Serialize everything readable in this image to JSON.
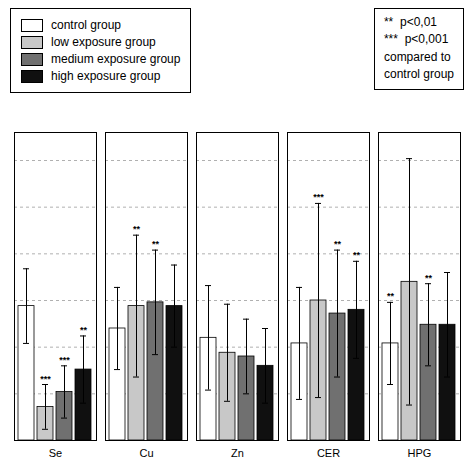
{
  "chart_data": {
    "type": "bar",
    "categories": [
      "Se",
      "Cu",
      "Zn",
      "CER",
      "HPG"
    ],
    "series": [
      {
        "name": "control group",
        "color": "white",
        "values": [
          0.72,
          0.6,
          0.55,
          0.52,
          0.52
        ],
        "errors": [
          0.2,
          0.22,
          0.28,
          0.3,
          0.22
        ],
        "significance": [
          null,
          null,
          null,
          null,
          "**"
        ]
      },
      {
        "name": "low exposure group",
        "color": "#c8c8c8",
        "values": [
          0.18,
          0.72,
          0.47,
          0.75,
          0.85
        ],
        "errors": [
          0.12,
          0.38,
          0.26,
          0.52,
          0.66
        ],
        "significance": [
          "***",
          "**",
          null,
          "***",
          null
        ]
      },
      {
        "name": "medium exposure group",
        "color": "#707070",
        "values": [
          0.26,
          0.74,
          0.45,
          0.68,
          0.62
        ],
        "errors": [
          0.14,
          0.28,
          0.2,
          0.34,
          0.22
        ],
        "significance": [
          "***",
          "**",
          null,
          "**",
          "**"
        ]
      },
      {
        "name": "high exposure group",
        "color": "#101010",
        "values": [
          0.38,
          0.72,
          0.4,
          0.7,
          0.62
        ],
        "errors": [
          0.18,
          0.22,
          0.2,
          0.26,
          0.28
        ],
        "significance": [
          "**",
          null,
          null,
          "**",
          null
        ]
      }
    ],
    "annotations": [
      "**  p<0,01",
      "***  p<0,001",
      "compared to",
      "control group"
    ],
    "ylim": [
      0,
      1.65
    ],
    "yticks": [
      0,
      0.25,
      0.5,
      0.75,
      1.0,
      1.25,
      1.5
    ],
    "grid": true,
    "tick_labels": "x",
    "legend": "top"
  }
}
